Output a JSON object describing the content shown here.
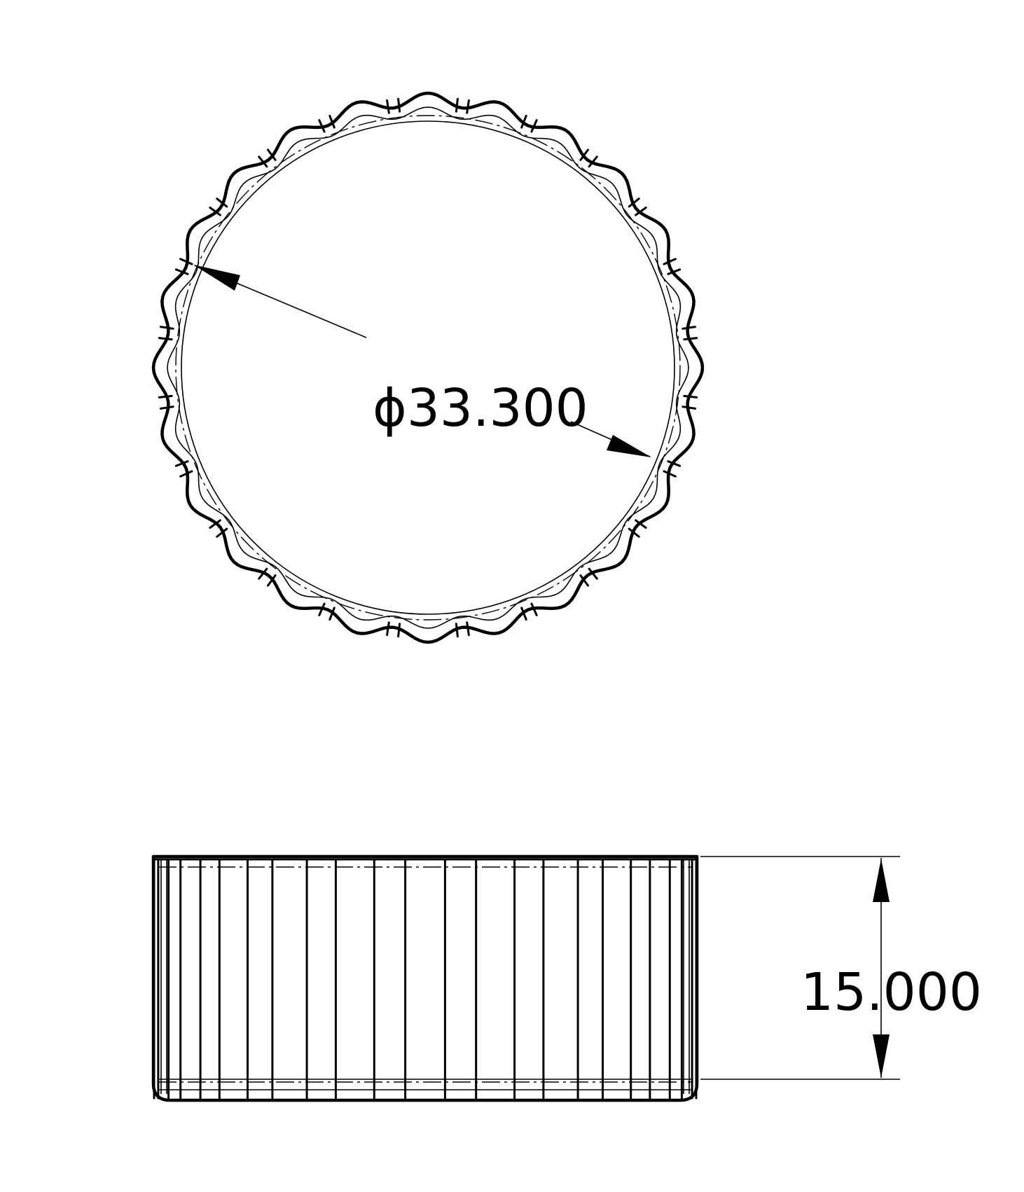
{
  "drawing": {
    "top_view": {
      "diameter_label": "ϕ33.300",
      "flute_count": 24
    },
    "side_view": {
      "height_label": "15.000"
    }
  }
}
